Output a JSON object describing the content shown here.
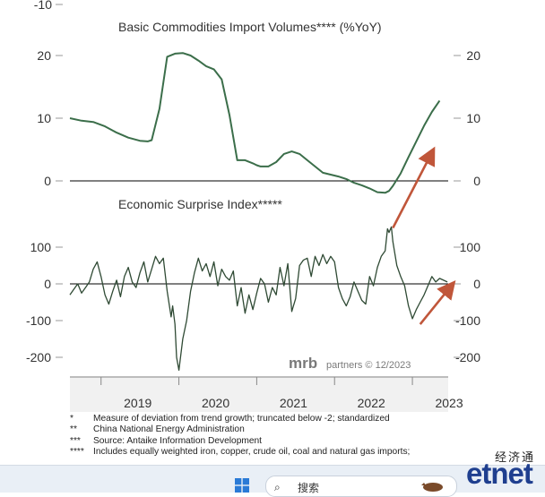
{
  "chart_data": {
    "type": "line",
    "x_tick_labels": [
      "2019",
      "2020",
      "2021",
      "2022",
      "2023"
    ],
    "top_left_tick_label": "-10",
    "panels": [
      {
        "title": "Basic Commodities Import Volumes**** (%YoY)",
        "ylim": [
          -10,
          20
        ],
        "y_ticks": [
          0,
          10,
          20
        ],
        "y_tick_labels": [
          "0",
          "10",
          "20"
        ],
        "zero_line": true,
        "series": [
          {
            "color": "#3b6e4a",
            "x": [
              2018.6,
              2018.75,
              2018.9,
              2019.05,
              2019.2,
              2019.35,
              2019.5,
              2019.6,
              2019.65,
              2019.75,
              2019.85,
              2019.95,
              2020.05,
              2020.15,
              2020.25,
              2020.35,
              2020.45,
              2020.55,
              2020.65,
              2020.75,
              2020.85,
              2020.95,
              2021.0,
              2021.05,
              2021.15,
              2021.25,
              2021.35,
              2021.45,
              2021.55,
              2021.65,
              2021.75,
              2021.85,
              2021.95,
              2022.05,
              2022.15,
              2022.25,
              2022.35,
              2022.45,
              2022.55,
              2022.65,
              2022.7,
              2022.75,
              2022.85,
              2022.95,
              2023.05,
              2023.15,
              2023.25,
              2023.35
            ],
            "y": [
              10.0,
              9.6,
              9.4,
              8.7,
              7.7,
              6.9,
              6.4,
              6.3,
              6.5,
              11.5,
              19.8,
              20.3,
              20.4,
              20.0,
              19.2,
              18.3,
              17.8,
              16.2,
              10.5,
              3.3,
              3.3,
              2.8,
              2.5,
              2.3,
              2.3,
              3.0,
              4.3,
              4.7,
              4.3,
              3.3,
              2.3,
              1.3,
              1.0,
              0.7,
              0.3,
              -0.3,
              -0.7,
              -1.2,
              -1.8,
              -1.9,
              -1.6,
              -0.8,
              1.2,
              3.8,
              6.3,
              8.8,
              11.0,
              12.8
            ]
          }
        ]
      },
      {
        "title": "Economic Surprise Index*****",
        "ylim": [
          -250,
          170
        ],
        "y_ticks": [
          100,
          0,
          -100,
          -200
        ],
        "y_tick_labels": [
          "100",
          "0",
          "-100",
          "-200"
        ],
        "zero_line": true,
        "series": [
          {
            "color": "#2f4a34",
            "x": [
              2018.6,
              2018.65,
              2018.7,
              2018.75,
              2018.8,
              2018.85,
              2018.9,
              2018.95,
              2019.0,
              2019.05,
              2019.1,
              2019.15,
              2019.2,
              2019.25,
              2019.3,
              2019.35,
              2019.4,
              2019.45,
              2019.5,
              2019.55,
              2019.6,
              2019.65,
              2019.7,
              2019.75,
              2019.8,
              2019.85,
              2019.9,
              2019.92,
              2019.95,
              2019.97,
              2020.0,
              2020.05,
              2020.1,
              2020.15,
              2020.2,
              2020.25,
              2020.3,
              2020.35,
              2020.4,
              2020.45,
              2020.5,
              2020.55,
              2020.6,
              2020.65,
              2020.7,
              2020.75,
              2020.8,
              2020.85,
              2020.9,
              2020.95,
              2021.0,
              2021.05,
              2021.1,
              2021.15,
              2021.2,
              2021.25,
              2021.3,
              2021.35,
              2021.4,
              2021.45,
              2021.5,
              2021.55,
              2021.6,
              2021.65,
              2021.7,
              2021.75,
              2021.8,
              2021.85,
              2021.9,
              2021.95,
              2022.0,
              2022.05,
              2022.1,
              2022.15,
              2022.2,
              2022.25,
              2022.3,
              2022.35,
              2022.4,
              2022.45,
              2022.5,
              2022.55,
              2022.6,
              2022.65,
              2022.68,
              2022.7,
              2022.73,
              2022.75,
              2022.8,
              2022.85,
              2022.9,
              2022.95,
              2023.0,
              2023.05,
              2023.1,
              2023.15,
              2023.2,
              2023.25,
              2023.3,
              2023.35,
              2023.4,
              2023.45
            ],
            "y": [
              -30,
              -15,
              0,
              -25,
              -10,
              5,
              40,
              60,
              20,
              -30,
              -55,
              -20,
              10,
              -35,
              20,
              45,
              5,
              -10,
              30,
              60,
              5,
              40,
              75,
              55,
              70,
              -20,
              -90,
              -60,
              -110,
              -200,
              -235,
              -150,
              -100,
              -20,
              30,
              70,
              35,
              55,
              20,
              60,
              -5,
              40,
              20,
              10,
              35,
              -60,
              -10,
              -80,
              -30,
              -70,
              -25,
              15,
              0,
              -50,
              -10,
              -30,
              45,
              -5,
              55,
              -75,
              -40,
              50,
              65,
              70,
              20,
              75,
              50,
              80,
              55,
              75,
              60,
              -10,
              -40,
              -60,
              -35,
              5,
              -20,
              -45,
              -55,
              20,
              -5,
              45,
              75,
              90,
              150,
              140,
              155,
              115,
              50,
              20,
              -5,
              -60,
              -95,
              -70,
              -50,
              -30,
              -5,
              20,
              5,
              15,
              10,
              5
            ]
          }
        ]
      }
    ],
    "arrows": [
      {
        "color": "#c0563a",
        "x": [
          2022.75,
          2023.25
        ],
        "y": [
          -7.5,
          4.5
        ],
        "panel": 0
      },
      {
        "color": "#c0563a",
        "x": [
          2023.1,
          2023.5
        ],
        "y": [
          -110,
          -5
        ],
        "panel": 1
      }
    ]
  },
  "watermark": {
    "brand": "mrb",
    "text": "partners © 12/2023"
  },
  "footnotes": [
    {
      "mark": "*",
      "text": "Measure of deviation from trend growth; truncated below -2; standardized"
    },
    {
      "mark": "**",
      "text": "China National Energy Administration"
    },
    {
      "mark": "***",
      "text": "Source: Antaike Information Development"
    },
    {
      "mark": "****",
      "text": "Includes equally weighted iron, copper, crude oil, coal and natural gas imports;"
    }
  ],
  "brand_logo": {
    "chinese": "经济通",
    "english": "etnet"
  },
  "taskbar": {
    "search_placeholder": "搜索",
    "colors": {
      "background": "#e9eff6",
      "accent": "#1f3f8f"
    }
  }
}
